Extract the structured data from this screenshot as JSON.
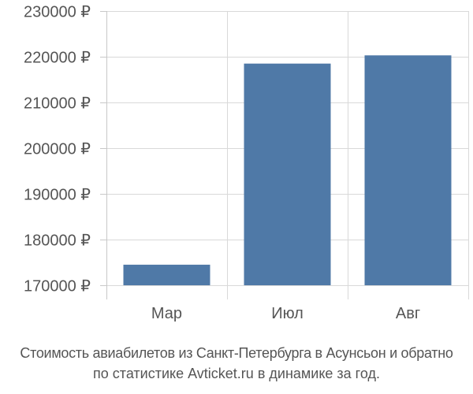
{
  "chart_data": {
    "type": "bar",
    "categories": [
      "Мар",
      "Июл",
      "Авг"
    ],
    "values": [
      174500,
      218500,
      220300
    ],
    "ylim": [
      170000,
      230000
    ],
    "yticks": [
      170000,
      180000,
      190000,
      200000,
      210000,
      220000,
      230000
    ],
    "ytick_labels": [
      "170000 ₽",
      "180000 ₽",
      "190000 ₽",
      "200000 ₽",
      "210000 ₽",
      "220000 ₽",
      "230000 ₽"
    ],
    "xlabel": "",
    "ylabel": "",
    "grid": true,
    "bar_color": "#4f79a7",
    "grid_color": "#d9d9d9",
    "text_color": "#555555"
  },
  "caption": {
    "line1": "Стоимость авиабилетов из Санкт-Петербурга в Асунсьон и обратно",
    "line2": "по статистике Avticket.ru в динамике за год."
  }
}
